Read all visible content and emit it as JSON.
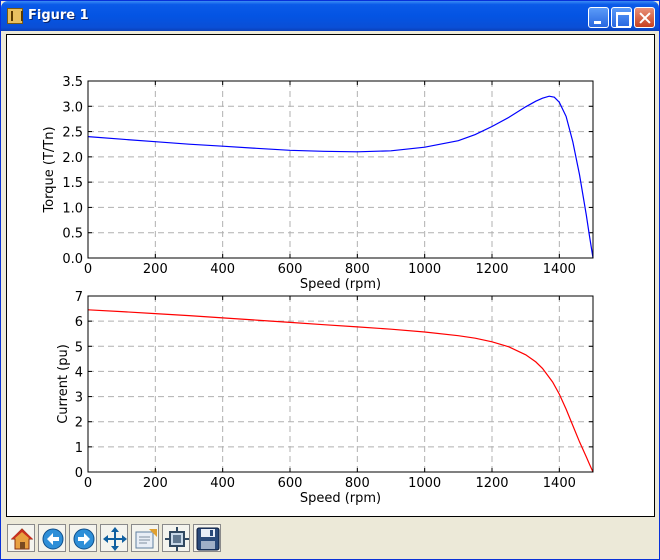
{
  "window": {
    "title": "Figure 1"
  },
  "toolbar": {
    "tools": [
      "home-icon",
      "back-icon",
      "forward-icon",
      "pan-icon",
      "zoom-icon",
      "subplots-icon",
      "save-icon"
    ]
  },
  "colors": {
    "torque_line": "#0000ff",
    "current_line": "#ff0000"
  },
  "chart_data": [
    {
      "type": "line",
      "title": "",
      "xlabel": "Speed (rpm)",
      "ylabel": "Torque (T/Tn)",
      "xlim": [
        0,
        1500
      ],
      "ylim": [
        0,
        3.5
      ],
      "xticks": [
        "0",
        "200",
        "400",
        "600",
        "800",
        "1000",
        "1200",
        "1400"
      ],
      "yticks": [
        "0.0",
        "0.5",
        "1.0",
        "1.5",
        "2.0",
        "2.5",
        "3.0",
        "3.5"
      ],
      "grid": true,
      "series": [
        {
          "color": "#0000ff",
          "x": [
            0,
            100,
            200,
            300,
            400,
            500,
            600,
            700,
            800,
            900,
            1000,
            1100,
            1150,
            1200,
            1250,
            1300,
            1330,
            1350,
            1370,
            1385,
            1400,
            1420,
            1440,
            1460,
            1480,
            1490,
            1500
          ],
          "y": [
            2.4,
            2.35,
            2.3,
            2.25,
            2.21,
            2.17,
            2.13,
            2.11,
            2.1,
            2.12,
            2.19,
            2.32,
            2.44,
            2.6,
            2.78,
            2.99,
            3.1,
            3.16,
            3.2,
            3.18,
            3.08,
            2.8,
            2.3,
            1.65,
            0.85,
            0.42,
            0.0
          ]
        }
      ]
    },
    {
      "type": "line",
      "title": "",
      "xlabel": "Speed (rpm)",
      "ylabel": "Current (pu)",
      "xlim": [
        0,
        1500
      ],
      "ylim": [
        0,
        7
      ],
      "xticks": [
        "0",
        "200",
        "400",
        "600",
        "800",
        "1000",
        "1200",
        "1400"
      ],
      "yticks": [
        "0",
        "1",
        "2",
        "3",
        "4",
        "5",
        "6",
        "7"
      ],
      "grid": true,
      "series": [
        {
          "color": "#ff0000",
          "x": [
            0,
            100,
            200,
            300,
            400,
            500,
            600,
            700,
            800,
            900,
            1000,
            1100,
            1150,
            1200,
            1250,
            1300,
            1330,
            1350,
            1380,
            1400,
            1420,
            1440,
            1460,
            1480,
            1490,
            1500
          ],
          "y": [
            6.45,
            6.38,
            6.3,
            6.22,
            6.13,
            6.04,
            5.95,
            5.86,
            5.77,
            5.68,
            5.57,
            5.42,
            5.32,
            5.18,
            4.98,
            4.66,
            4.38,
            4.12,
            3.58,
            3.1,
            2.5,
            1.85,
            1.2,
            0.6,
            0.3,
            0.0
          ]
        }
      ]
    }
  ]
}
